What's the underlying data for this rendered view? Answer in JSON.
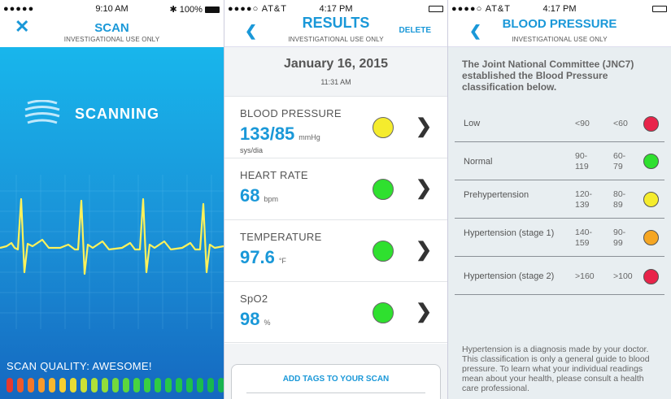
{
  "scan": {
    "status": {
      "signal": "●●●●●",
      "wifi": "WiFi",
      "time": "9:10 AM",
      "bluetooth": "✱",
      "battery": "100%"
    },
    "close_icon": "✕",
    "title": "SCAN",
    "subtitle": "INVESTIGATIONAL USE ONLY",
    "scanning_label": "SCANNING",
    "quality_label": "SCAN QUALITY: AWESOME!",
    "quality_bar_colors": [
      "#e63a2e",
      "#ef5a2a",
      "#f4782a",
      "#f79a2c",
      "#f9b72e",
      "#f8cf30",
      "#e8dc33",
      "#cde035",
      "#b0e038",
      "#92dd3a",
      "#74d93c",
      "#5cd63e",
      "#48d340",
      "#3ad042",
      "#2fcc44",
      "#28c846",
      "#22c448",
      "#1ec04a",
      "#1bbc4c",
      "#18b84e",
      "#16b450"
    ]
  },
  "results": {
    "status": {
      "signal": "●●●●○",
      "carrier": "AT&T",
      "time": "4:17 PM"
    },
    "back_icon": "❮",
    "title": "RESULTS",
    "subtitle": "INVESTIGATIONAL USE ONLY",
    "delete_label": "DELETE",
    "date": "January 16, 2015",
    "time": "11:31 AM",
    "rows": [
      {
        "label": "BLOOD PRESSURE",
        "value": "133/85",
        "unit": "mmHg",
        "sub": "sys/dia",
        "color": "#f5ec2d"
      },
      {
        "label": "HEART RATE",
        "value": "68",
        "unit": "bpm",
        "sub": "",
        "color": "#2fe02f"
      },
      {
        "label": "TEMPERATURE",
        "value": "97.6",
        "unit": "°F",
        "sub": "",
        "color": "#2fe02f"
      },
      {
        "label": "SpO2",
        "value": "98",
        "unit": "%",
        "sub": "",
        "color": "#2fe02f"
      }
    ],
    "chevron": "❯",
    "add_tags_label": "ADD TAGS TO YOUR SCAN"
  },
  "bp": {
    "status": {
      "signal": "●●●●○",
      "carrier": "AT&T",
      "time": "4:17 PM"
    },
    "back_icon": "❮",
    "title": "BLOOD PRESSURE",
    "subtitle": "INVESTIGATIONAL USE ONLY",
    "intro": "The Joint National Committee (JNC7) established the Blood Pressure classification below.",
    "rows": [
      {
        "name": "Low",
        "sys": "<90",
        "dia": "<60",
        "color": "#e8244a"
      },
      {
        "name": "Normal",
        "sys": "90-\n119",
        "dia": "60-\n79",
        "color": "#2fe02f"
      },
      {
        "name": "Prehypertension",
        "sys": "120-\n139",
        "dia": "80-\n89",
        "color": "#f5ec2d"
      },
      {
        "name": "Hypertension (stage 1)",
        "sys": "140-\n159",
        "dia": "90-\n99",
        "color": "#f5a623"
      },
      {
        "name": "Hypertension (stage 2)",
        "sys": ">160",
        "dia": ">100",
        "color": "#e8244a"
      }
    ],
    "note": "Hypertension is a diagnosis made by your doctor. This classification is only a general guide to blood pressure. To learn what your individual readings mean about your health, please consult a health care professional."
  }
}
